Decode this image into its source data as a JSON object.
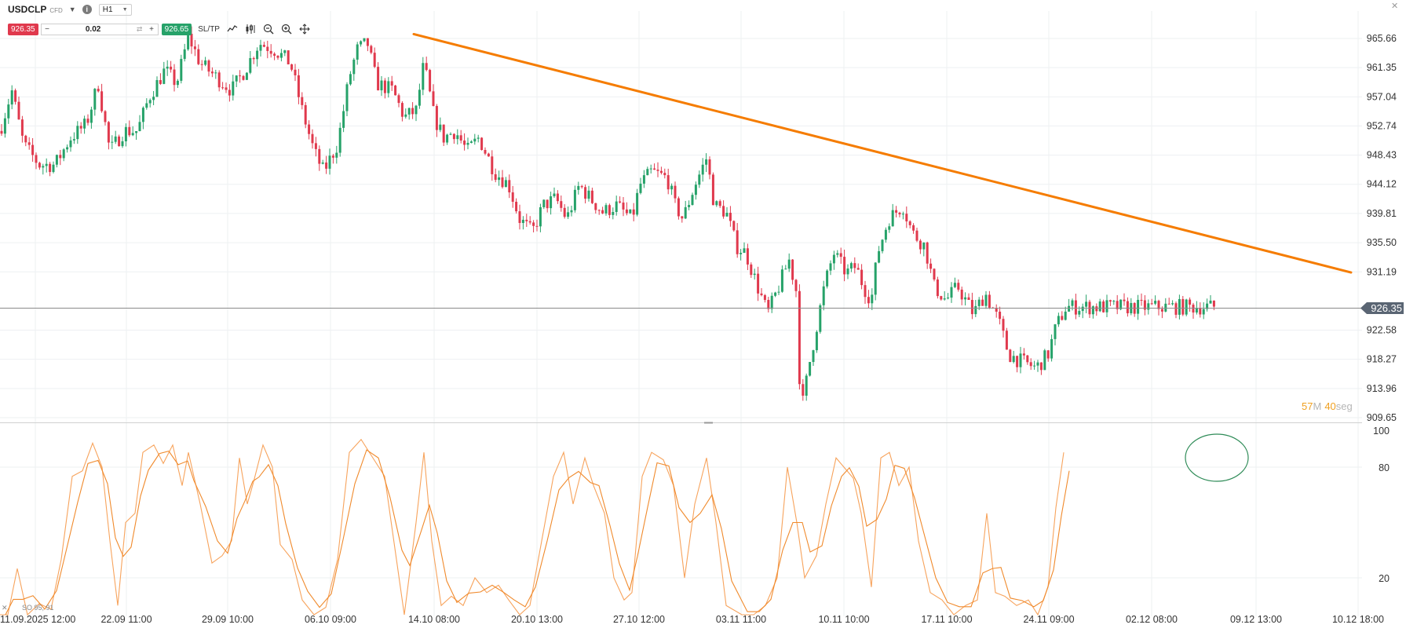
{
  "toolbar": {
    "symbol": "USDCLP",
    "instrument_type": "CFD",
    "timeframe": "H1",
    "sell_price": "926.35",
    "buy_price": "926.65",
    "quantity": "0.02",
    "sltp_label": "SL/TP"
  },
  "countdown": {
    "minutes": "57",
    "minutes_unit": "M",
    "seconds": "40",
    "seconds_unit": "seg"
  },
  "current_price_label": "926.35",
  "indicator_label": "SO 95, 91",
  "colors": {
    "up": "#26a269",
    "down": "#e0394d",
    "trendline": "#f57c00",
    "stoch": "#f7a35c",
    "stoch_signal": "#f08a2c",
    "annotation": "#2e8b57"
  },
  "chart_data": {
    "type": "candlestick",
    "price_axis": {
      "range": [
        909.65,
        969.97
      ],
      "ticks": [
        "965.66",
        "961.35",
        "957.04",
        "952.74",
        "948.43",
        "944.12",
        "939.81",
        "935.50",
        "931.19",
        "922.58",
        "918.27",
        "913.96",
        "909.65"
      ]
    },
    "time_axis": {
      "ticks": [
        "11.09.2025 12:00",
        "22.09 11:00",
        "29.09 10:00",
        "06.10 09:00",
        "14.10 08:00",
        "20.10 13:00",
        "27.10 12:00",
        "03.11 11:00",
        "10.11 10:00",
        "17.11 10:00",
        "24.11 09:00",
        "02.12 08:00",
        "09.12 13:00",
        "10.12 18:00"
      ]
    },
    "close_path": [
      [
        0,
        952
      ],
      [
        15,
        958
      ],
      [
        30,
        950
      ],
      [
        50,
        947
      ],
      [
        70,
        947
      ],
      [
        90,
        951
      ],
      [
        110,
        953
      ],
      [
        125,
        959
      ],
      [
        140,
        949
      ],
      [
        158,
        952
      ],
      [
        175,
        952
      ],
      [
        190,
        957
      ],
      [
        210,
        961
      ],
      [
        225,
        959
      ],
      [
        240,
        966
      ],
      [
        255,
        962
      ],
      [
        275,
        960
      ],
      [
        295,
        958
      ],
      [
        312,
        961
      ],
      [
        330,
        965
      ],
      [
        350,
        964
      ],
      [
        370,
        962
      ],
      [
        385,
        955
      ],
      [
        400,
        949
      ],
      [
        412,
        946
      ],
      [
        430,
        950
      ],
      [
        445,
        960
      ],
      [
        455,
        964
      ],
      [
        468,
        965
      ],
      [
        480,
        959
      ],
      [
        500,
        958
      ],
      [
        515,
        954
      ],
      [
        530,
        955
      ],
      [
        540,
        962
      ],
      [
        553,
        954
      ],
      [
        565,
        951
      ],
      [
        580,
        952
      ],
      [
        595,
        949
      ],
      [
        610,
        951
      ],
      [
        630,
        946
      ],
      [
        648,
        944
      ],
      [
        662,
        939
      ],
      [
        678,
        937
      ],
      [
        692,
        941
      ],
      [
        708,
        942
      ],
      [
        722,
        939
      ],
      [
        738,
        944
      ],
      [
        752,
        942
      ],
      [
        768,
        940
      ],
      [
        785,
        941
      ],
      [
        805,
        939
      ],
      [
        815,
        944
      ],
      [
        830,
        946
      ],
      [
        850,
        945
      ],
      [
        860,
        941
      ],
      [
        870,
        939
      ],
      [
        885,
        944
      ],
      [
        900,
        948
      ],
      [
        910,
        941
      ],
      [
        925,
        940
      ],
      [
        938,
        935
      ],
      [
        950,
        934
      ],
      [
        965,
        929
      ],
      [
        978,
        925
      ],
      [
        992,
        929
      ],
      [
        1005,
        933
      ],
      [
        1015,
        928
      ],
      [
        1020,
        910
      ],
      [
        1030,
        917
      ],
      [
        1040,
        923
      ],
      [
        1050,
        929
      ],
      [
        1062,
        934
      ],
      [
        1078,
        931
      ],
      [
        1090,
        932
      ],
      [
        1100,
        929
      ],
      [
        1110,
        927
      ],
      [
        1118,
        934
      ],
      [
        1132,
        939
      ],
      [
        1150,
        941
      ],
      [
        1162,
        937
      ],
      [
        1178,
        935
      ],
      [
        1190,
        929
      ],
      [
        1205,
        927
      ],
      [
        1220,
        929
      ],
      [
        1240,
        925
      ],
      [
        1255,
        928
      ],
      [
        1272,
        924
      ],
      [
        1285,
        919
      ],
      [
        1300,
        918
      ],
      [
        1320,
        917
      ],
      [
        1335,
        919
      ],
      [
        1345,
        923
      ],
      [
        1358,
        926
      ]
    ],
    "trendline": {
      "from": [
        "14.10 08:00",
        966.3
      ],
      "to": [
        "10.12 18:00",
        931.1
      ]
    },
    "current_price": 926.35,
    "stochastic": {
      "name": "SO 95, 91",
      "range": [
        0,
        100
      ],
      "levels": [
        20,
        80
      ],
      "k_path": [
        [
          0,
          0
        ],
        [
          10,
          0
        ],
        [
          22,
          25
        ],
        [
          35,
          0
        ],
        [
          50,
          6
        ],
        [
          65,
          3
        ],
        [
          78,
          30
        ],
        [
          92,
          75
        ],
        [
          105,
          78
        ],
        [
          118,
          93
        ],
        [
          130,
          80
        ],
        [
          140,
          40
        ],
        [
          150,
          5
        ],
        [
          160,
          50
        ],
        [
          172,
          55
        ],
        [
          182,
          88
        ],
        [
          196,
          92
        ],
        [
          208,
          82
        ],
        [
          220,
          92
        ],
        [
          232,
          70
        ],
        [
          240,
          88
        ],
        [
          255,
          60
        ],
        [
          270,
          28
        ],
        [
          283,
          32
        ],
        [
          295,
          40
        ],
        [
          305,
          85
        ],
        [
          315,
          60
        ],
        [
          323,
          72
        ],
        [
          335,
          92
        ],
        [
          347,
          80
        ],
        [
          357,
          38
        ],
        [
          372,
          30
        ],
        [
          385,
          8
        ],
        [
          400,
          0
        ],
        [
          415,
          4
        ],
        [
          430,
          30
        ],
        [
          445,
          88
        ],
        [
          460,
          95
        ],
        [
          475,
          85
        ],
        [
          490,
          75
        ],
        [
          505,
          30
        ],
        [
          515,
          0
        ],
        [
          530,
          50
        ],
        [
          540,
          88
        ],
        [
          550,
          40
        ],
        [
          562,
          5
        ],
        [
          575,
          10
        ],
        [
          590,
          5
        ],
        [
          605,
          20
        ],
        [
          620,
          12
        ],
        [
          635,
          16
        ],
        [
          648,
          8
        ],
        [
          662,
          0
        ],
        [
          675,
          5
        ],
        [
          690,
          40
        ],
        [
          705,
          75
        ],
        [
          718,
          88
        ],
        [
          730,
          60
        ],
        [
          745,
          85
        ],
        [
          756,
          70
        ],
        [
          770,
          55
        ],
        [
          782,
          20
        ],
        [
          795,
          8
        ],
        [
          805,
          12
        ],
        [
          818,
          75
        ],
        [
          830,
          88
        ],
        [
          845,
          84
        ],
        [
          858,
          70
        ],
        [
          872,
          20
        ],
        [
          885,
          60
        ],
        [
          900,
          85
        ],
        [
          912,
          50
        ],
        [
          925,
          5
        ],
        [
          945,
          0
        ],
        [
          960,
          0
        ],
        [
          975,
          5
        ],
        [
          990,
          20
        ],
        [
          1003,
          80
        ],
        [
          1015,
          50
        ],
        [
          1025,
          20
        ],
        [
          1040,
          32
        ],
        [
          1052,
          60
        ],
        [
          1065,
          85
        ],
        [
          1075,
          80
        ],
        [
          1087,
          74
        ],
        [
          1097,
          55
        ],
        [
          1110,
          15
        ],
        [
          1122,
          85
        ],
        [
          1133,
          88
        ],
        [
          1145,
          70
        ],
        [
          1158,
          80
        ],
        [
          1170,
          40
        ],
        [
          1185,
          12
        ],
        [
          1200,
          8
        ],
        [
          1215,
          0
        ],
        [
          1230,
          5
        ],
        [
          1245,
          8
        ],
        [
          1257,
          55
        ],
        [
          1268,
          12
        ],
        [
          1280,
          10
        ],
        [
          1295,
          5
        ],
        [
          1310,
          8
        ],
        [
          1322,
          0
        ],
        [
          1335,
          15
        ],
        [
          1345,
          58
        ],
        [
          1355,
          88
        ]
      ]
    }
  }
}
